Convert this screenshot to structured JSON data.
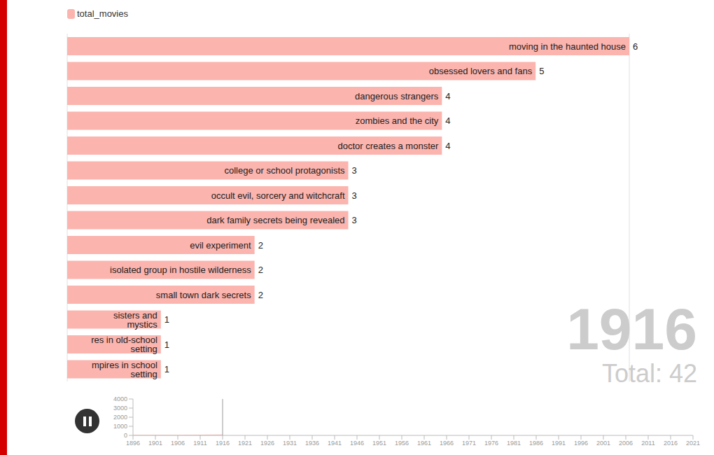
{
  "chart_data": [
    {
      "type": "bar",
      "orientation": "horizontal",
      "categories": [
        "moving in the haunted house",
        "obsessed lovers and fans",
        "dangerous strangers",
        "zombies and the city",
        "doctor creates a monster",
        "college or school protagonists",
        "occult evil, sorcery and witchcraft",
        "dark family secrets being revealed",
        "evil experiment",
        "isolated group in hostile wilderness",
        "small town dark secrets",
        "sisters and mystics",
        "res in old-school setting",
        "mpires in school setting"
      ],
      "series": [
        {
          "name": "total_movies",
          "color": "#fbb4ae",
          "values": [
            6,
            5,
            4,
            4,
            4,
            3,
            3,
            3,
            2,
            2,
            2,
            1,
            1,
            1
          ]
        }
      ],
      "xlim": [
        0,
        6
      ],
      "xticks": [
        0,
        2,
        4,
        6
      ],
      "grid": true,
      "tick_labels": false,
      "data_labels": true,
      "legend": "top-left",
      "annotations": [
        "1916",
        "Total: 42"
      ]
    },
    {
      "type": "line",
      "x": [
        1896,
        1901,
        1906,
        1911,
        1916
      ],
      "series": [
        {
          "name": "total_movies",
          "color": "#fbb4ae",
          "values": [
            0,
            2,
            8,
            20,
            42
          ]
        }
      ],
      "xlim": [
        1896,
        2021
      ],
      "xticks": [
        1896,
        1901,
        1906,
        1911,
        1916,
        1921,
        1926,
        1931,
        1936,
        1941,
        1946,
        1951,
        1956,
        1961,
        1966,
        1971,
        1976,
        1981,
        1986,
        1991,
        1996,
        2001,
        2006,
        2011,
        2016,
        2021
      ],
      "ylim": [
        0,
        4000
      ],
      "yticks": [
        0,
        1000,
        2000,
        3000,
        4000
      ],
      "current_x": 1916
    }
  ]
}
